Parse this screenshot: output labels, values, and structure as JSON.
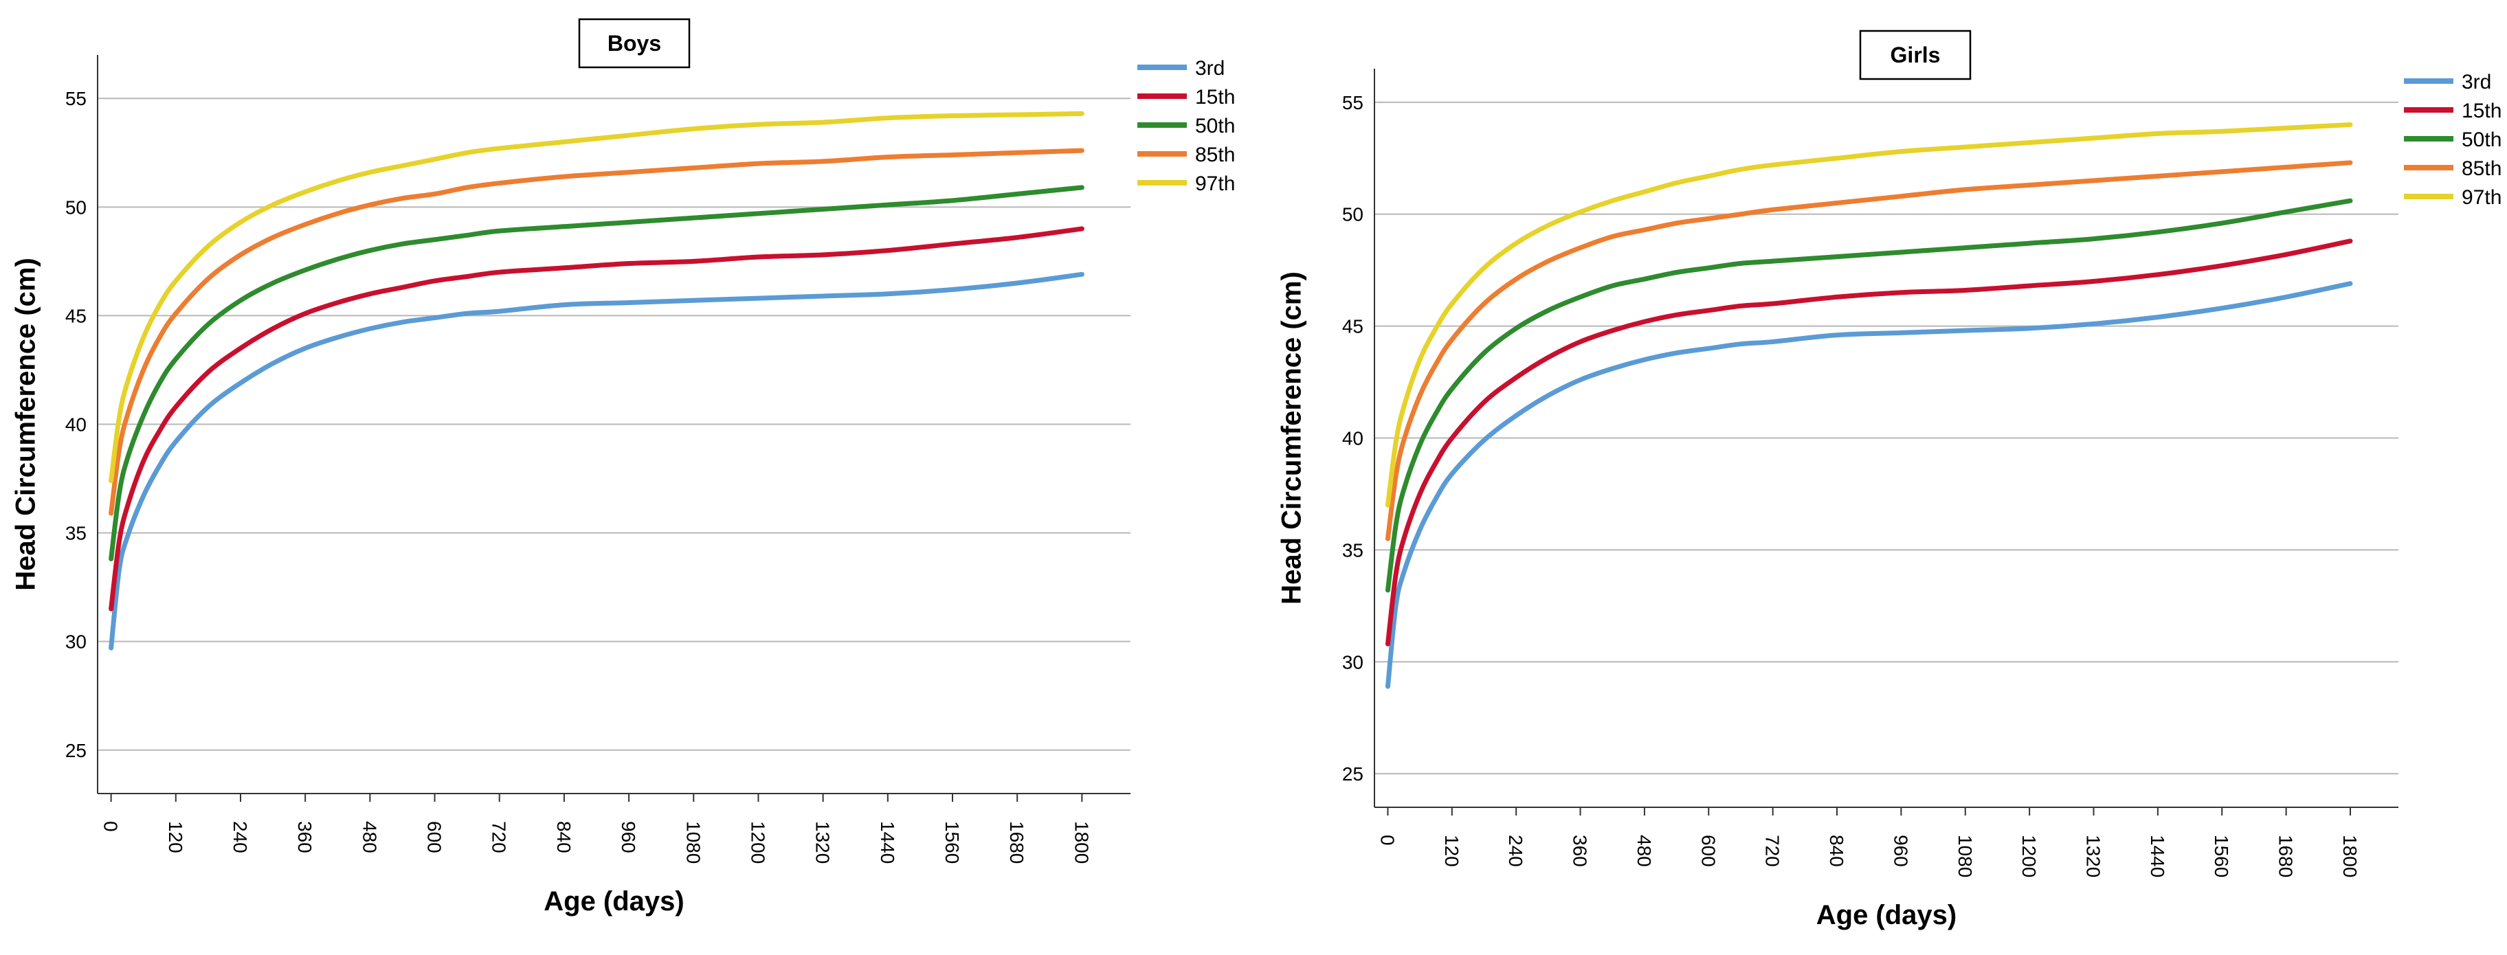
{
  "chart_data": [
    {
      "type": "line",
      "title": "Boys",
      "xlabel": "Age (days)",
      "ylabel": "Head Circumference (cm)",
      "ylim": [
        23,
        57
      ],
      "xlim": [
        -25,
        1890
      ],
      "xticks": [
        0,
        120,
        240,
        360,
        480,
        600,
        720,
        840,
        960,
        1080,
        1200,
        1320,
        1440,
        1560,
        1680,
        1800
      ],
      "yticks": [
        25,
        30,
        35,
        40,
        45,
        50,
        55
      ],
      "x": [
        0,
        15,
        30,
        60,
        90,
        120,
        180,
        240,
        300,
        360,
        420,
        480,
        540,
        600,
        660,
        720,
        840,
        960,
        1080,
        1200,
        1320,
        1440,
        1560,
        1680,
        1800
      ],
      "series": [
        {
          "name": "3rd",
          "color": "#5b9bd5",
          "values": [
            29.7,
            33.3,
            34.8,
            36.7,
            38.1,
            39.2,
            40.8,
            41.9,
            42.8,
            43.5,
            44.0,
            44.4,
            44.7,
            44.9,
            45.1,
            45.2,
            45.5,
            45.6,
            45.7,
            45.8,
            45.9,
            46.0,
            46.2,
            46.5,
            46.9
          ]
        },
        {
          "name": "15th",
          "color": "#c8102e",
          "values": [
            31.5,
            34.6,
            36.2,
            38.3,
            39.7,
            40.8,
            42.4,
            43.5,
            44.4,
            45.1,
            45.6,
            46.0,
            46.3,
            46.6,
            46.8,
            47.0,
            47.2,
            47.4,
            47.5,
            47.7,
            47.8,
            48.0,
            48.3,
            48.6,
            49.0
          ]
        },
        {
          "name": "50th",
          "color": "#2e8b2e",
          "values": [
            33.8,
            36.8,
            38.4,
            40.4,
            41.9,
            43.0,
            44.6,
            45.7,
            46.5,
            47.1,
            47.6,
            48.0,
            48.3,
            48.5,
            48.7,
            48.9,
            49.1,
            49.3,
            49.5,
            49.7,
            49.9,
            50.1,
            50.3,
            50.6,
            50.9
          ]
        },
        {
          "name": "85th",
          "color": "#ed7d31",
          "values": [
            35.9,
            38.8,
            40.4,
            42.5,
            44.0,
            45.1,
            46.7,
            47.8,
            48.6,
            49.2,
            49.7,
            50.1,
            50.4,
            50.6,
            50.9,
            51.1,
            51.4,
            51.6,
            51.8,
            52.0,
            52.1,
            52.3,
            52.4,
            52.5,
            52.6
          ]
        },
        {
          "name": "97th",
          "color": "#e6d22a",
          "values": [
            37.4,
            40.3,
            41.9,
            44.0,
            45.5,
            46.6,
            48.2,
            49.3,
            50.1,
            50.7,
            51.2,
            51.6,
            51.9,
            52.2,
            52.5,
            52.7,
            53.0,
            53.3,
            53.6,
            53.8,
            53.9,
            54.1,
            54.2,
            54.25,
            54.3
          ]
        }
      ],
      "legend": "top-right"
    },
    {
      "type": "line",
      "title": "Girls",
      "xlabel": "Age (days)",
      "ylabel": "Head Circumference (cm)",
      "ylim": [
        23.5,
        56.5
      ],
      "xlim": [
        -25,
        1890
      ],
      "xticks": [
        0,
        120,
        240,
        360,
        480,
        600,
        720,
        840,
        960,
        1080,
        1200,
        1320,
        1440,
        1560,
        1680,
        1800
      ],
      "yticks": [
        25,
        30,
        35,
        40,
        45,
        50,
        55
      ],
      "x": [
        0,
        15,
        30,
        60,
        90,
        120,
        180,
        240,
        300,
        360,
        420,
        480,
        540,
        600,
        660,
        720,
        840,
        960,
        1080,
        1200,
        1320,
        1440,
        1560,
        1680,
        1800
      ],
      "series": [
        {
          "name": "3rd",
          "color": "#5b9bd5",
          "values": [
            28.9,
            32.5,
            34.0,
            35.9,
            37.3,
            38.4,
            39.9,
            41.0,
            41.9,
            42.6,
            43.1,
            43.5,
            43.8,
            44.0,
            44.2,
            44.3,
            44.6,
            44.7,
            44.8,
            44.9,
            45.1,
            45.4,
            45.8,
            46.3,
            46.9
          ]
        },
        {
          "name": "15th",
          "color": "#c8102e",
          "values": [
            30.8,
            33.9,
            35.5,
            37.5,
            38.9,
            40.0,
            41.6,
            42.7,
            43.6,
            44.3,
            44.8,
            45.2,
            45.5,
            45.7,
            45.9,
            46.0,
            46.3,
            46.5,
            46.6,
            46.8,
            47.0,
            47.3,
            47.7,
            48.2,
            48.8
          ]
        },
        {
          "name": "50th",
          "color": "#2e8b2e",
          "values": [
            33.2,
            36.1,
            37.7,
            39.7,
            41.1,
            42.2,
            43.8,
            44.9,
            45.7,
            46.3,
            46.8,
            47.1,
            47.4,
            47.6,
            47.8,
            47.9,
            48.1,
            48.3,
            48.5,
            48.7,
            48.9,
            49.2,
            49.6,
            50.1,
            50.6
          ]
        },
        {
          "name": "85th",
          "color": "#ed7d31",
          "values": [
            35.5,
            38.3,
            39.9,
            41.9,
            43.3,
            44.4,
            46.0,
            47.1,
            47.9,
            48.5,
            49.0,
            49.3,
            49.6,
            49.8,
            50.0,
            50.2,
            50.5,
            50.8,
            51.1,
            51.3,
            51.5,
            51.7,
            51.9,
            52.1,
            52.3
          ]
        },
        {
          "name": "97th",
          "color": "#e6d22a",
          "values": [
            37.0,
            39.8,
            41.4,
            43.5,
            44.9,
            46.0,
            47.6,
            48.7,
            49.5,
            50.1,
            50.6,
            51.0,
            51.4,
            51.7,
            52.0,
            52.2,
            52.5,
            52.8,
            53.0,
            53.2,
            53.4,
            53.6,
            53.7,
            53.85,
            54.0
          ]
        }
      ],
      "legend": "top-right"
    }
  ]
}
